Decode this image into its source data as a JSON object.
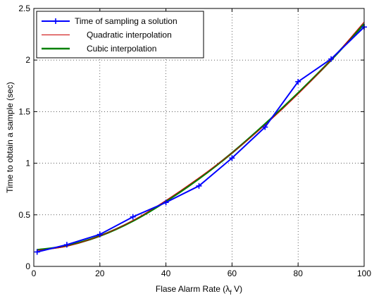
{
  "chart_data": {
    "type": "line",
    "title": "",
    "xlabel": "Flase Alarm Rate (λ",
    "xlabel_sub": "f",
    "xlabel_tail": " V)",
    "ylabel": "Time to obtain a sample (sec)",
    "xlim": [
      0,
      100
    ],
    "ylim": [
      0,
      2.5
    ],
    "xticks": [
      0,
      20,
      40,
      60,
      80,
      100
    ],
    "xtick_labels": [
      "0",
      "20",
      "40",
      "60",
      "80",
      "100"
    ],
    "yticks": [
      0,
      0.5,
      1,
      1.5,
      2,
      2.5
    ],
    "ytick_labels": [
      "0",
      "0.5",
      "1",
      "1.5",
      "2",
      "2.5"
    ],
    "grid": true,
    "grid_style": "dotted",
    "legend_position": "top-left",
    "series": [
      {
        "name": "Time of sampling a solution",
        "color": "#0000ff",
        "marker": "plus",
        "x": [
          1,
          10,
          20,
          30,
          40,
          50,
          60,
          70,
          80,
          90,
          100
        ],
        "y": [
          0.14,
          0.21,
          0.31,
          0.48,
          0.62,
          0.78,
          1.05,
          1.35,
          1.79,
          2.01,
          2.32
        ]
      },
      {
        "name": "Quadratic interpolation",
        "color": "#cc0000",
        "marker": "none",
        "x": [
          1,
          10,
          20,
          30,
          40,
          50,
          60,
          70,
          80,
          90,
          100
        ],
        "y": [
          0.155,
          0.195,
          0.295,
          0.445,
          0.64,
          0.86,
          1.1,
          1.37,
          1.67,
          2.0,
          2.37
        ]
      },
      {
        "name": "Cubic interpolation",
        "color": "#008000",
        "marker": "none",
        "x": [
          1,
          10,
          20,
          30,
          40,
          50,
          60,
          70,
          80,
          90,
          100
        ],
        "y": [
          0.16,
          0.2,
          0.295,
          0.44,
          0.63,
          0.85,
          1.1,
          1.38,
          1.68,
          2.0,
          2.35
        ]
      }
    ]
  }
}
